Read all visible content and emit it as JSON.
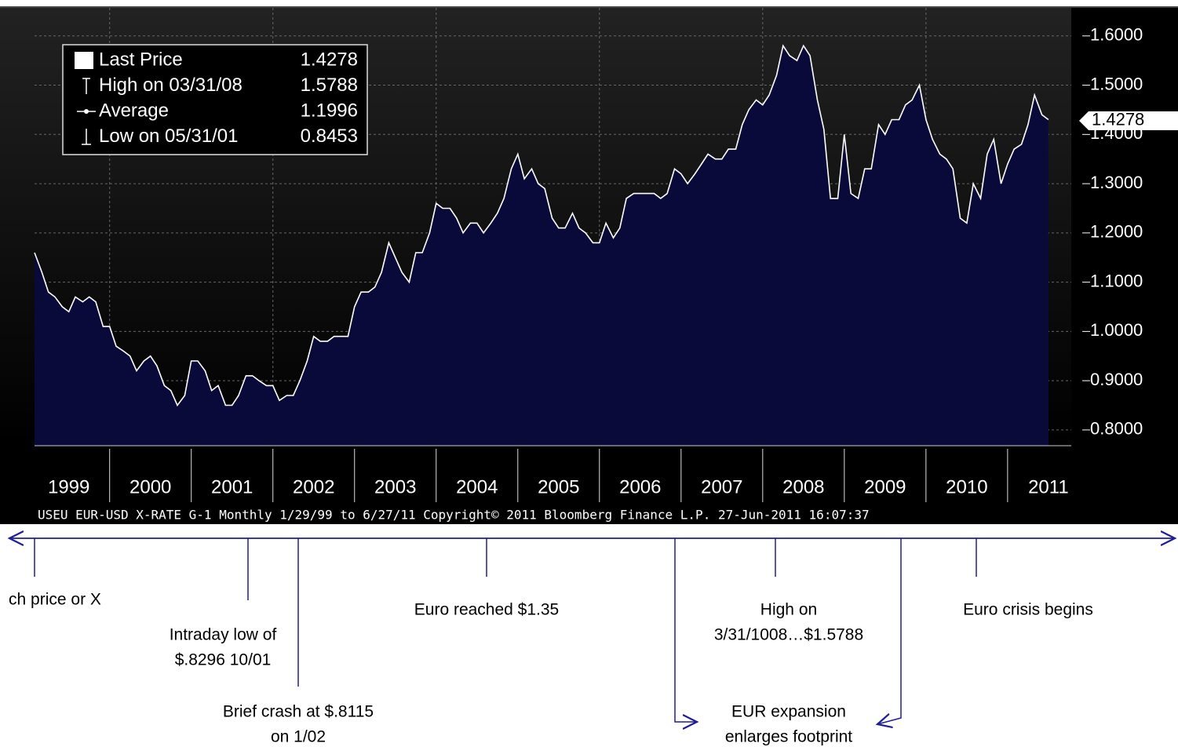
{
  "chart_data": {
    "type": "area",
    "series": [
      {
        "name": "Last Price",
        "color": "#ffffff",
        "values": [
          1.16,
          1.12,
          1.08,
          1.07,
          1.05,
          1.04,
          1.07,
          1.06,
          1.07,
          1.06,
          1.01,
          1.01,
          0.97,
          0.96,
          0.95,
          0.92,
          0.94,
          0.95,
          0.93,
          0.89,
          0.88,
          0.85,
          0.87,
          0.94,
          0.94,
          0.92,
          0.88,
          0.89,
          0.85,
          0.85,
          0.87,
          0.91,
          0.91,
          0.9,
          0.89,
          0.89,
          0.86,
          0.87,
          0.87,
          0.9,
          0.94,
          0.99,
          0.98,
          0.98,
          0.99,
          0.99,
          0.99,
          1.05,
          1.08,
          1.08,
          1.09,
          1.12,
          1.18,
          1.15,
          1.12,
          1.1,
          1.16,
          1.16,
          1.2,
          1.26,
          1.25,
          1.25,
          1.23,
          1.2,
          1.22,
          1.22,
          1.2,
          1.22,
          1.24,
          1.27,
          1.33,
          1.36,
          1.31,
          1.33,
          1.3,
          1.29,
          1.23,
          1.21,
          1.21,
          1.24,
          1.21,
          1.2,
          1.18,
          1.18,
          1.22,
          1.19,
          1.21,
          1.27,
          1.28,
          1.28,
          1.28,
          1.28,
          1.27,
          1.28,
          1.33,
          1.32,
          1.3,
          1.32,
          1.34,
          1.36,
          1.35,
          1.35,
          1.37,
          1.37,
          1.42,
          1.45,
          1.47,
          1.46,
          1.48,
          1.52,
          1.58,
          1.56,
          1.55,
          1.58,
          1.56,
          1.47,
          1.41,
          1.27,
          1.27,
          1.4,
          1.28,
          1.27,
          1.33,
          1.33,
          1.42,
          1.4,
          1.43,
          1.43,
          1.46,
          1.47,
          1.5,
          1.43,
          1.39,
          1.36,
          1.35,
          1.33,
          1.23,
          1.22,
          1.3,
          1.27,
          1.36,
          1.39,
          1.3,
          1.34,
          1.37,
          1.38,
          1.42,
          1.48,
          1.44,
          1.43
        ]
      }
    ],
    "x": [
      1999.08,
      1999.17,
      1999.25,
      1999.33,
      1999.42,
      1999.5,
      1999.58,
      1999.67,
      1999.75,
      1999.83,
      1999.92,
      2000,
      2000.08,
      2000.17,
      2000.25,
      2000.33,
      2000.42,
      2000.5,
      2000.58,
      2000.67,
      2000.75,
      2000.83,
      2000.92,
      2001,
      2001.08,
      2001.17,
      2001.25,
      2001.33,
      2001.42,
      2001.5,
      2001.58,
      2001.67,
      2001.75,
      2001.83,
      2001.92,
      2002,
      2002.08,
      2002.17,
      2002.25,
      2002.33,
      2002.42,
      2002.5,
      2002.58,
      2002.67,
      2002.75,
      2002.83,
      2002.92,
      2003,
      2003.08,
      2003.17,
      2003.25,
      2003.33,
      2003.42,
      2003.5,
      2003.58,
      2003.67,
      2003.75,
      2003.83,
      2003.92,
      2004,
      2004.08,
      2004.17,
      2004.25,
      2004.33,
      2004.42,
      2004.5,
      2004.58,
      2004.67,
      2004.75,
      2004.83,
      2004.92,
      2005,
      2005.08,
      2005.17,
      2005.25,
      2005.33,
      2005.42,
      2005.5,
      2005.58,
      2005.67,
      2005.75,
      2005.83,
      2005.92,
      2006,
      2006.08,
      2006.17,
      2006.25,
      2006.33,
      2006.42,
      2006.5,
      2006.58,
      2006.67,
      2006.75,
      2006.83,
      2006.92,
      2007,
      2007.08,
      2007.17,
      2007.25,
      2007.33,
      2007.42,
      2007.5,
      2007.58,
      2007.67,
      2007.75,
      2007.83,
      2007.92,
      2008,
      2008.08,
      2008.17,
      2008.25,
      2008.33,
      2008.42,
      2008.5,
      2008.58,
      2008.67,
      2008.75,
      2008.83,
      2008.92,
      2009,
      2009.08,
      2009.17,
      2009.25,
      2009.33,
      2009.42,
      2009.5,
      2009.58,
      2009.67,
      2009.75,
      2009.83,
      2009.92,
      2010,
      2010.08,
      2010.17,
      2010.25,
      2010.33,
      2010.42,
      2010.5,
      2010.58,
      2010.67,
      2010.75,
      2010.83,
      2010.92,
      2011,
      2011.08,
      2011.17,
      2011.25,
      2011.33,
      2011.42,
      2011.5
    ],
    "xlim": [
      1999.08,
      2011.78
    ],
    "xticks": [
      {
        "value": 1999.5,
        "label": "1999"
      },
      {
        "value": 2000.5,
        "label": "2000"
      },
      {
        "value": 2001.5,
        "label": "2001"
      },
      {
        "value": 2002.5,
        "label": "2002"
      },
      {
        "value": 2003.5,
        "label": "2003"
      },
      {
        "value": 2004.5,
        "label": "2004"
      },
      {
        "value": 2005.5,
        "label": "2005"
      },
      {
        "value": 2006.5,
        "label": "2006"
      },
      {
        "value": 2007.5,
        "label": "2007"
      },
      {
        "value": 2008.5,
        "label": "2008"
      },
      {
        "value": 2009.5,
        "label": "2009"
      },
      {
        "value": 2010.5,
        "label": "2010"
      },
      {
        "value": 2011.5,
        "label": "2011"
      }
    ],
    "xgrid": [
      2000,
      2001,
      2002,
      2003,
      2004,
      2005,
      2006,
      2007,
      2008,
      2009,
      2010,
      2011
    ],
    "ylim": [
      0.768,
      1.657
    ],
    "yticks": [
      {
        "value": 0.8,
        "label": "0.8000"
      },
      {
        "value": 0.9,
        "label": "0.9000"
      },
      {
        "value": 1.0,
        "label": "1.0000"
      },
      {
        "value": 1.1,
        "label": "1.1000"
      },
      {
        "value": 1.2,
        "label": "1.2000"
      },
      {
        "value": 1.3,
        "label": "1.3000"
      },
      {
        "value": 1.4,
        "label": "1.4000"
      },
      {
        "value": 1.5,
        "label": "1.5000"
      },
      {
        "value": 1.6,
        "label": "1.6000"
      }
    ],
    "grid": true,
    "legend": [
      {
        "label": "Last Price",
        "value": 1.4278
      },
      {
        "label": "High on 03/31/08",
        "value": 1.5788
      },
      {
        "label": "Average",
        "value": 1.1996
      },
      {
        "label": "Low on 05/31/01",
        "value": 0.8453
      }
    ],
    "footer": "USEU  EUR-USD X-RATE     G-1   Monthly  1/29/99 to 6/27/11 Copyright© 2011 Bloomberg Finance L.P. 27-Jun-2011 16:07:37",
    "annotations": [
      [
        "ch price or X"
      ],
      [
        "Intraday low of",
        "$.8296 10/01"
      ],
      [
        "Brief crash at $.8115",
        "on 1/02"
      ],
      [
        "Euro reached $1.35"
      ],
      [
        "High on",
        "3/31/1008…$1.5788"
      ],
      [
        "Euro crisis begins"
      ],
      [
        "EUR expansion",
        "enlarges footprint"
      ]
    ]
  }
}
